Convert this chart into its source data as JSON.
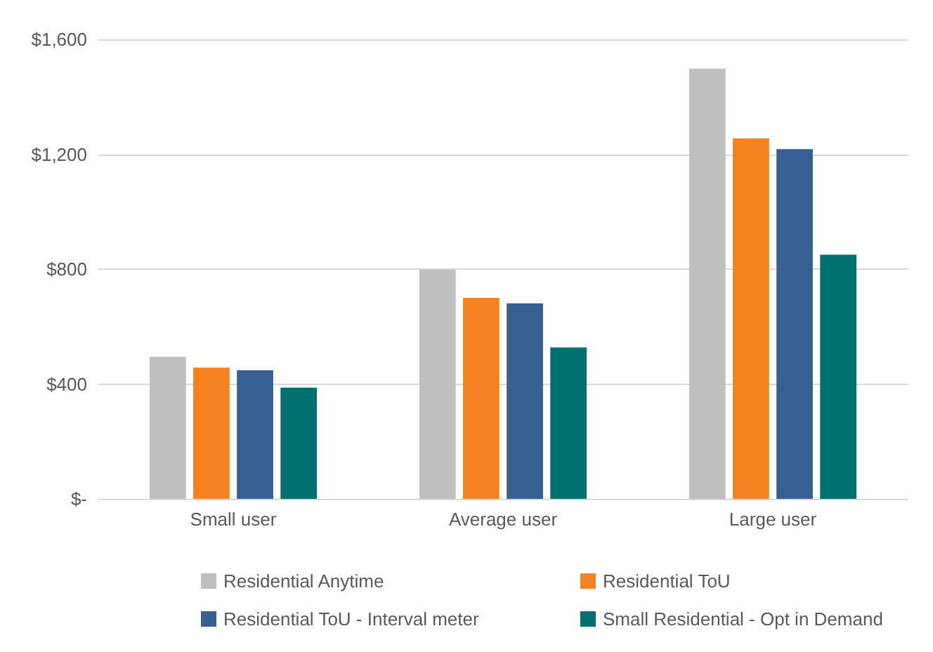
{
  "chart_data": {
    "type": "bar",
    "categories": [
      "Small user",
      "Average user",
      "Large user"
    ],
    "series": [
      {
        "name": "Residential Anytime",
        "color": "#bfbfbf",
        "values": [
          495,
          798,
          1498
        ]
      },
      {
        "name": "Residential ToU",
        "color": "#f58220",
        "values": [
          457,
          700,
          1255
        ]
      },
      {
        "name": "Residential ToU - Interval meter",
        "color": "#376092",
        "values": [
          448,
          681,
          1218
        ]
      },
      {
        "name": "Small Residential - Opt in Demand",
        "color": "#007070",
        "values": [
          387,
          527,
          850
        ]
      }
    ],
    "ylim": [
      0,
      1600
    ],
    "yticks": [
      {
        "value": 0,
        "label": "$-"
      },
      {
        "value": 400,
        "label": "$400"
      },
      {
        "value": 800,
        "label": "$800"
      },
      {
        "value": 1200,
        "label": "$1,200"
      },
      {
        "value": 1600,
        "label": "$1,600"
      }
    ],
    "grid": "y",
    "legend": "bottom"
  }
}
